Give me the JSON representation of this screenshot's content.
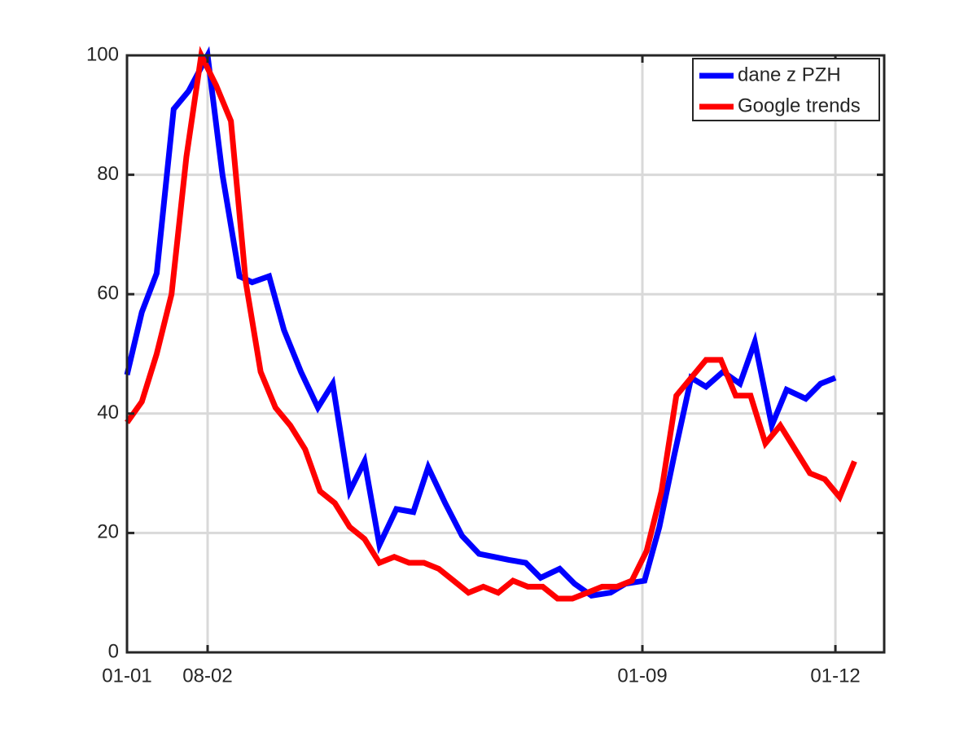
{
  "chart_data": {
    "type": "line",
    "xlim": [
      0,
      357
    ],
    "ylim": [
      0,
      100
    ],
    "xticks": [
      {
        "value": 0,
        "label": "01-01"
      },
      {
        "value": 38,
        "label": "08-02"
      },
      {
        "value": 243,
        "label": "01-09"
      },
      {
        "value": 334,
        "label": "01-12"
      }
    ],
    "yticks": [
      0,
      20,
      40,
      60,
      80,
      100
    ],
    "grid": true,
    "legend": "upper right",
    "series": [
      {
        "name": "dane z PZH",
        "color": "#0000ff",
        "x": [
          0,
          7,
          14,
          22,
          29,
          38,
          45,
          53,
          59,
          67,
          74,
          82,
          90,
          97,
          105,
          112,
          119,
          127,
          135,
          142,
          150,
          158,
          166,
          173,
          180,
          188,
          195,
          204,
          211,
          219,
          228,
          235,
          244,
          251,
          258,
          266,
          273,
          281,
          289,
          296,
          304,
          311,
          320,
          327,
          334
        ],
        "values": [
          46.5,
          57,
          63.5,
          91,
          94,
          100,
          80,
          63,
          62,
          63,
          54,
          47,
          41,
          45,
          27,
          32,
          18,
          24,
          23.5,
          31,
          25,
          19.5,
          16.5,
          16,
          15.5,
          15,
          12.5,
          14,
          11.5,
          9.5,
          10,
          11.5,
          12,
          21,
          33,
          46,
          44.5,
          47,
          45,
          52,
          38,
          44,
          42.5,
          45,
          46
        ]
      },
      {
        "name": "Google trends",
        "color": "#ff0000",
        "x": [
          0,
          7,
          14,
          21,
          28,
          35,
          42,
          49,
          56,
          63,
          70,
          77,
          84,
          91,
          98,
          105,
          112,
          119,
          126,
          133,
          140,
          147,
          154,
          161,
          168,
          175,
          182,
          189,
          196,
          203,
          210,
          217,
          224,
          231,
          238,
          245,
          252,
          259,
          266,
          273,
          280,
          287,
          294,
          301,
          308,
          315,
          322,
          329,
          336,
          343
        ],
        "values": [
          38.5,
          42,
          50,
          60,
          83,
          100,
          95,
          89,
          62,
          47,
          41,
          38,
          34,
          27,
          25,
          21,
          19,
          15,
          16,
          15,
          15,
          14,
          12,
          10,
          11,
          10,
          12,
          11,
          11,
          9,
          9,
          10,
          11,
          11,
          12,
          17,
          27,
          43,
          46,
          49,
          49,
          43,
          43,
          35,
          38,
          34,
          30,
          29,
          26,
          32
        ]
      }
    ]
  }
}
